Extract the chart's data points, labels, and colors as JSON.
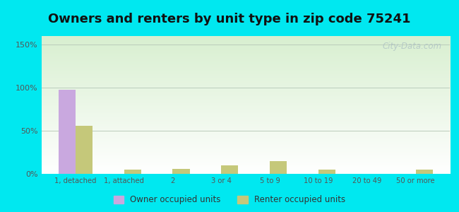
{
  "title": "Owners and renters by unit type in zip code 75241",
  "categories": [
    "1, detached",
    "1, attached",
    "2",
    "3 or 4",
    "5 to 9",
    "10 to 19",
    "20 to 49",
    "50 or more"
  ],
  "owner_values": [
    98,
    0,
    0,
    0,
    0,
    0,
    0,
    0
  ],
  "renter_values": [
    56,
    5,
    6,
    10,
    15,
    5,
    0,
    5
  ],
  "owner_color": "#c9a8df",
  "renter_color": "#c5c87a",
  "owner_label": "Owner occupied units",
  "renter_label": "Renter occupied units",
  "ylim": [
    0,
    160
  ],
  "yticks": [
    0,
    50,
    100,
    150
  ],
  "ytick_labels": [
    "0%",
    "50%",
    "100%",
    "150%"
  ],
  "background_outer": "#00e8f0",
  "watermark": "City-Data.com",
  "title_fontsize": 13,
  "bar_width": 0.35
}
